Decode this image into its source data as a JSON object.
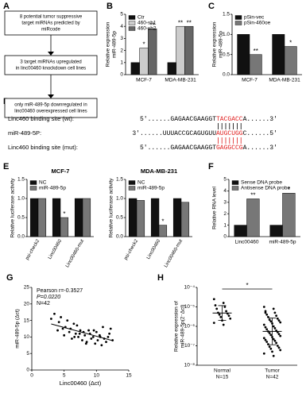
{
  "flowchart": {
    "panel": "A",
    "steps": [
      [
        "8 potential tumor suppressive",
        "target miRNAs predicted by",
        "miRcode"
      ],
      [
        "3 target miRNAs upregulated",
        "in linc00460 knockdown cell lines"
      ],
      [
        "only miR-489-5p downregulated in",
        "linc00460 overexpressed cell lines"
      ]
    ]
  },
  "alignment": {
    "panel": "D",
    "rows": [
      {
        "label": "Linc460 binding site (wt):",
        "prefix": "5'......GAGAACGAAGGT",
        "seed": "TACGACC",
        "suffix": "A......3'"
      },
      {
        "label": "miR-489-5P:",
        "prefix": "3'......UUUACCGCAGUGUU",
        "seed": "AUGCUGG",
        "suffix": "C......5'"
      },
      {
        "label": "Linc460 binding site (mut):",
        "prefix": "5'......GAGAACGAAGGT",
        "seed": "GAGGCCG",
        "suffix": "A......3'"
      }
    ]
  },
  "chart_data": [
    {
      "type": "bar",
      "panel": "B",
      "y_label": [
        "Relative expression",
        "miR-489-5p"
      ],
      "categories": [
        "MCF-7",
        "MDA-MB-231"
      ],
      "series": [
        {
          "name": "Ctr",
          "color": "#111111",
          "values": [
            1,
            1
          ],
          "significance": [
            null,
            null
          ]
        },
        {
          "name": "460-sh1",
          "color": "#cccccc",
          "values": [
            2.2,
            4.0
          ],
          "significance": [
            "*",
            "**"
          ]
        },
        {
          "name": "460-sh2",
          "color": "#666666",
          "values": [
            3.8,
            4.0
          ],
          "significance": [
            "**",
            "**"
          ]
        }
      ],
      "ylim": [
        0,
        5
      ],
      "yticks": [
        0,
        1,
        2,
        3,
        4,
        5
      ],
      "legend": "upper left"
    },
    {
      "type": "bar",
      "panel": "C",
      "y_label": [
        "Relative expression",
        "miR-489-5p"
      ],
      "categories": [
        "MCF-7",
        "MDA-MB-231"
      ],
      "series": [
        {
          "name": "pSin-vec",
          "color": "#111111",
          "values": [
            1.0,
            1.0
          ],
          "significance": [
            null,
            null
          ]
        },
        {
          "name": "pSin-460oe",
          "color": "#777777",
          "values": [
            0.5,
            0.7
          ],
          "significance": [
            "**",
            "*"
          ]
        }
      ],
      "ylim": [
        0,
        1.5
      ],
      "yticks": [
        {
          "value": 0,
          "label": "0.0"
        },
        {
          "value": 0.5,
          "label": "0.5"
        },
        {
          "value": 1,
          "label": "1.0"
        },
        {
          "value": 1.5,
          "label": "1.5"
        }
      ],
      "legend": "upper left"
    },
    {
      "type": "bar",
      "panel": "E",
      "title": "MCF-7",
      "y_label": "Relative luciferase activity",
      "categories": [
        "psi-check2",
        "Linc00460",
        "Linc00460-mut"
      ],
      "series": [
        {
          "name": "NC",
          "color": "#111111",
          "values": [
            1,
            1,
            1
          ],
          "significance": [
            null,
            null,
            null
          ]
        },
        {
          "name": "miR-489-5p",
          "color": "#777777",
          "values": [
            1,
            0.5,
            1
          ],
          "significance": [
            null,
            "*",
            null
          ]
        }
      ],
      "ylim": [
        0,
        1.5
      ],
      "yticks": [
        {
          "value": 0,
          "label": "0.0"
        },
        {
          "value": 0.5,
          "label": "0.5"
        },
        {
          "value": 1,
          "label": "1.0"
        },
        {
          "value": 1.5,
          "label": "1.5"
        }
      ],
      "legend": "upper left"
    },
    {
      "type": "bar",
      "title": "MDA-MB-231",
      "y_label": "Relative luciferase activity",
      "categories": [
        "psi-check2",
        "Linc00460",
        "Linc00460-mut"
      ],
      "series": [
        {
          "name": "NC",
          "color": "#111111",
          "values": [
            1,
            1,
            1
          ],
          "significance": [
            null,
            null,
            null
          ]
        },
        {
          "name": "miR-489-5p",
          "color": "#777777",
          "values": [
            0.95,
            0.3,
            0.9
          ],
          "significance": [
            null,
            "*",
            null
          ]
        }
      ],
      "ylim": [
        0,
        1.5
      ],
      "yticks": [
        {
          "value": 0,
          "label": "0.0"
        },
        {
          "value": 0.5,
          "label": "0.5"
        },
        {
          "value": 1,
          "label": "1.0"
        },
        {
          "value": 1.5,
          "label": "1.5"
        }
      ],
      "legend": "upper left"
    },
    {
      "type": "bar",
      "panel": "F",
      "y_label": "Relative RNA level",
      "categories": [
        "Linc00460",
        "miR-489-5p"
      ],
      "series": [
        {
          "name": "Sense DNA probe",
          "color": "#111111",
          "values": [
            1,
            1
          ],
          "significance": [
            null,
            null
          ]
        },
        {
          "name": "Antisense DNA probe",
          "color": "#777777",
          "values": [
            3.3,
            3.8
          ],
          "significance": [
            "**",
            "*"
          ]
        }
      ],
      "ylim": [
        0,
        5
      ],
      "yticks": [
        0,
        1,
        2,
        3,
        4,
        5
      ],
      "legend": "upper left"
    },
    {
      "type": "scatter",
      "panel": "G",
      "x_label": "Linc00460 (Δct)",
      "y_label": "miR-489-5p (Δct)",
      "annotations": [
        "Pearson r=-0.3527",
        "P=0.0220",
        "N=42"
      ],
      "x": [
        3.0,
        3.5,
        4.0,
        4.2,
        4.5,
        5.0,
        5.2,
        5.5,
        5.8,
        6.0,
        6.2,
        6.5,
        6.8,
        7.0,
        7.2,
        7.5,
        7.8,
        8.0,
        8.2,
        8.5,
        8.8,
        9.0,
        9.2,
        9.5,
        9.8,
        10.0,
        10.2,
        10.5,
        10.8,
        11.0,
        11.2,
        11.5,
        11.8,
        12.0,
        12.2,
        12.5,
        4.8,
        6.6,
        8.4,
        9.6,
        10.6,
        7.4
      ],
      "y": [
        15.5,
        17.0,
        12.0,
        14.5,
        16.0,
        10.5,
        13.0,
        15.0,
        11.5,
        12.5,
        9.5,
        14.0,
        11.0,
        13.5,
        10.0,
        12.0,
        9.0,
        11.5,
        10.5,
        8.5,
        12.0,
        11.0,
        9.5,
        10.0,
        8.0,
        11.5,
        9.0,
        10.5,
        7.5,
        13.0,
        9.5,
        8.5,
        10.0,
        11.0,
        12.5,
        9.0,
        12.5,
        10.0,
        8.0,
        12.0,
        10.0,
        11.0
      ],
      "color": "#000000",
      "xlim": [
        0,
        15
      ],
      "xticks": [
        0,
        5,
        10,
        15
      ],
      "ylim": [
        0,
        25
      ],
      "yticks": [
        0,
        5,
        10,
        15,
        20,
        25
      ]
    },
    {
      "type": "strip",
      "panel": "H",
      "y_label": [
        "Relative expression of",
        "miR-489-5p(2⁻Δct)"
      ],
      "log_scale": true,
      "categories": [
        "Normal",
        "Tumor"
      ],
      "category_notes": [
        "N=15",
        "N=42"
      ],
      "significance": "*",
      "color": "#000000",
      "groups": [
        [
          2.5e-05,
          1.6e-05,
          1.2e-05,
          1e-05,
          8e-06,
          6e-06,
          5e-06,
          4.5e-06,
          4e-06,
          3.5e-06,
          3e-06,
          2.5e-06,
          2e-06,
          1.5e-06,
          1.2e-06
        ],
        [
          1e-05,
          8e-06,
          6e-06,
          5e-06,
          4e-06,
          3.5e-06,
          3e-06,
          2.5e-06,
          2.2e-06,
          2e-06,
          1.8e-06,
          1.6e-06,
          1.4e-06,
          1.2e-06,
          1e-06,
          9e-07,
          8e-07,
          7e-07,
          6e-07,
          5.5e-07,
          5e-07,
          4.5e-07,
          4e-07,
          3.6e-07,
          3.2e-07,
          2.8e-07,
          2.5e-07,
          2.2e-07,
          2e-07,
          1.8e-07,
          1.6e-07,
          1.4e-07,
          1.2e-07,
          1e-07,
          9e-08,
          8e-08,
          7e-08,
          6e-08,
          5e-08,
          4e-08,
          3e-08,
          5e-06
        ]
      ],
      "ylim": [
        1e-08,
        0.0001
      ],
      "yticks": [
        {
          "value": 1e-08,
          "label": "10⁻⁸"
        },
        {
          "value": 1e-07,
          "label": "10⁻⁷"
        },
        {
          "value": 1e-06,
          "label": "10⁻⁶"
        },
        {
          "value": 1e-05,
          "label": "10⁻⁵"
        },
        {
          "value": 0.0001,
          "label": "10⁻⁴"
        }
      ]
    }
  ]
}
